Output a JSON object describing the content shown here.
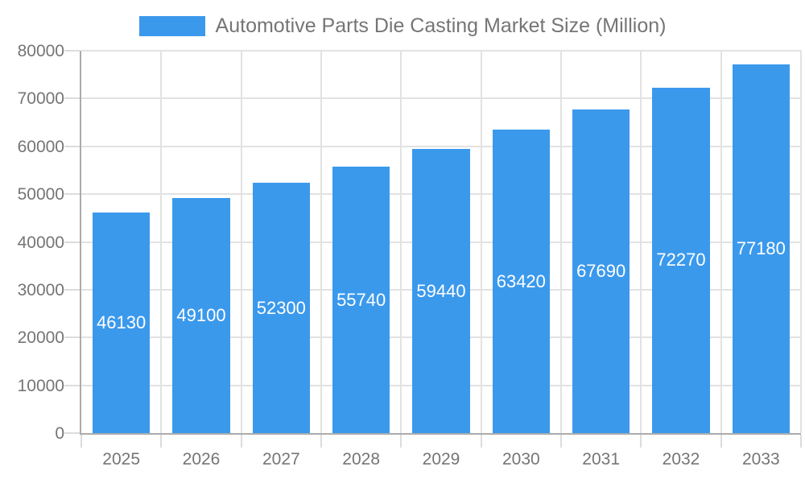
{
  "chart_data": {
    "type": "bar",
    "title": "Automotive Parts Die Casting Market Size (Million)",
    "categories": [
      "2025",
      "2026",
      "2027",
      "2028",
      "2029",
      "2030",
      "2031",
      "2032",
      "2033"
    ],
    "values": [
      46130,
      49100,
      52300,
      55740,
      59440,
      63420,
      67690,
      72270,
      77180
    ],
    "xlabel": "",
    "ylabel": "",
    "ylim": [
      0,
      80000
    ],
    "ytick_step": 10000,
    "ytick_labels": [
      "0",
      "10000",
      "20000",
      "30000",
      "40000",
      "50000",
      "60000",
      "70000",
      "80000"
    ],
    "bar_value_labels_visible": true,
    "legend_position": "top-center",
    "grid": true,
    "colors": {
      "bar": "#3B99EC",
      "bar_label_text": "#FFFFFF",
      "axis_text": "#757575",
      "axis_line": "#ABABAB",
      "gridline": "#E2E2E2",
      "tick": "#DCDCDC",
      "background": "#FFFFFF"
    }
  }
}
